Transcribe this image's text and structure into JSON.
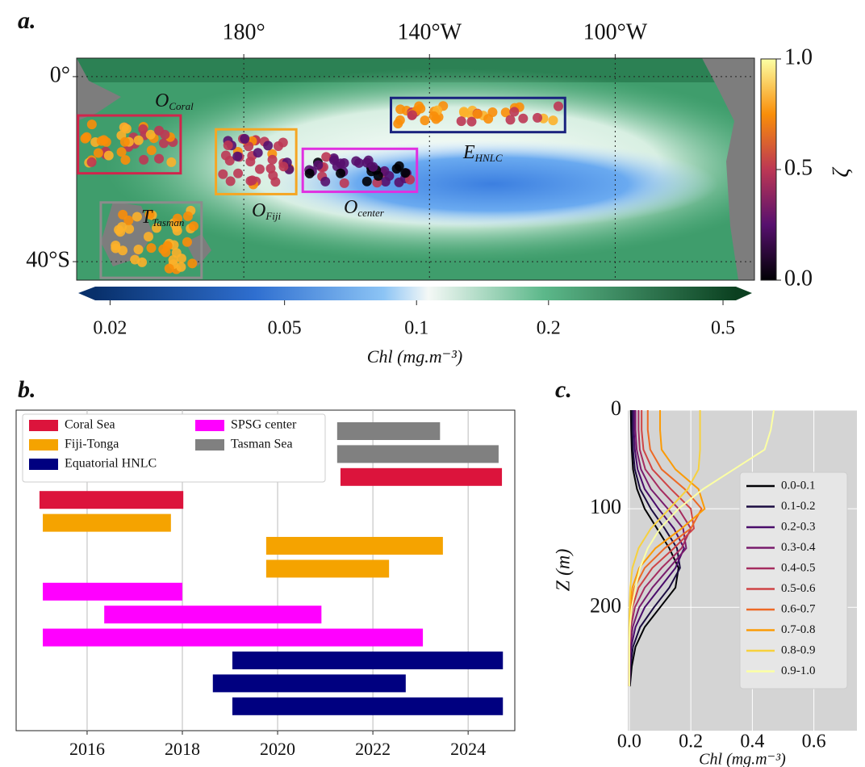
{
  "chart_data": [
    {
      "type": "map",
      "panel_label": "a.",
      "xlim": [
        144,
        290
      ],
      "ylim": [
        -44,
        4
      ],
      "xticks": [
        {
          "value": 180,
          "label": "180°"
        },
        {
          "value": 220,
          "label": "140°W"
        },
        {
          "value": 260,
          "label": "100°W"
        }
      ],
      "yticks": [
        {
          "value": 0,
          "label": "0°"
        },
        {
          "value": -40,
          "label": "40°S"
        }
      ],
      "regions": [
        {
          "text": "O",
          "sub": "Coral",
          "color": "#d1254c",
          "lon": [
            144.3,
            166.4
          ],
          "lat": [
            -8.4,
            -20.9
          ]
        },
        {
          "text": "O",
          "sub": "Fiji",
          "color": "#f5a623",
          "lon": [
            174,
            191.3
          ],
          "lat": [
            -11.4,
            -25.4
          ]
        },
        {
          "text": "O",
          "sub": "center",
          "color": "#e030e0",
          "lon": [
            192.7,
            217.3
          ],
          "lat": [
            -15.6,
            -24.9
          ]
        },
        {
          "text": "E",
          "sub": "HNLC",
          "color": "#1a237e",
          "lon": [
            211.7,
            249.2
          ],
          "lat": [
            -4.6,
            -12
          ]
        },
        {
          "text": "T",
          "sub": "Tasman",
          "color": "#8c8c8c",
          "lon": [
            149.2,
            170.9
          ],
          "lat": [
            -27.2,
            -43.5
          ]
        }
      ],
      "colorbar": {
        "label": "Chl (mg.m⁻³)",
        "log": true,
        "xlim": [
          0.0185,
          0.535
        ],
        "xticks": [
          0.02,
          0.05,
          0.1,
          0.2,
          0.5
        ]
      },
      "colorbar2": {
        "label": "ζ",
        "ylim": [
          0,
          1
        ],
        "yticks": [
          {
            "value": 0,
            "label": "0.0"
          },
          {
            "value": 0.5,
            "label": "0.5"
          },
          {
            "value": 1,
            "label": "1.0"
          }
        ]
      }
    },
    {
      "type": "timeline",
      "panel_label": "b.",
      "xlim": [
        2014.51,
        2024.98
      ],
      "xticks": [
        2016,
        2018,
        2020,
        2022,
        2024
      ],
      "grid": true,
      "series": [
        {
          "name": "Coral Sea",
          "color": "#dc143c",
          "start": [
            2021.32,
            2015.0
          ],
          "end": [
            2024.71,
            2018.02
          ]
        },
        {
          "name": "Fiji-Tonga",
          "color": "#f5a300",
          "start": [
            2015.07,
            2019.76,
            2019.76
          ],
          "end": [
            2017.76,
            2023.47,
            2022.34
          ]
        },
        {
          "name": "Equatorial HNLC",
          "color": "#000080",
          "start": [
            2019.05,
            2018.64,
            2019.05
          ],
          "end": [
            2024.73,
            2022.69,
            2024.73
          ]
        },
        {
          "name": "SPSG center",
          "color": "#ff00ff",
          "start": [
            2015.07,
            2016.36,
            2015.07
          ],
          "end": [
            2018.0,
            2020.92,
            2023.05
          ]
        },
        {
          "name": "Tasman Sea",
          "color": "#808080",
          "start": [
            2021.25,
            2021.25
          ],
          "end": [
            2023.41,
            2024.64
          ]
        }
      ]
    },
    {
      "type": "line",
      "panel_label": "c.",
      "x_label": "Chl (mg.m⁻³)",
      "y_label": "Z (m)",
      "xlim": [
        -0.005,
        0.74
      ],
      "ylim": [
        0,
        325
      ],
      "y_inverted": true,
      "xticks": [
        {
          "value": 0,
          "label": "0.0"
        },
        {
          "value": 0.2,
          "label": "0.2"
        },
        {
          "value": 0.4,
          "label": "0.4"
        },
        {
          "value": 0.6,
          "label": "0.6"
        }
      ],
      "yticks": [
        0,
        100,
        200
      ],
      "grid": true,
      "depth": [
        0,
        20,
        40,
        60,
        80,
        100,
        120,
        140,
        160,
        180,
        200,
        220,
        240,
        260,
        280
      ],
      "series": [
        {
          "name": "0.0-0.1",
          "color": "#000004",
          "values": [
            0.005,
            0.006,
            0.008,
            0.012,
            0.025,
            0.05,
            0.09,
            0.13,
            0.16,
            0.15,
            0.1,
            0.05,
            0.02,
            0.008,
            0.002
          ]
        },
        {
          "name": "0.1-0.2",
          "color": "#1b0c41",
          "values": [
            0.01,
            0.01,
            0.012,
            0.018,
            0.035,
            0.07,
            0.115,
            0.155,
            0.165,
            0.13,
            0.08,
            0.035,
            0.012,
            0.004,
            0.001
          ]
        },
        {
          "name": "0.2-0.3",
          "color": "#4a0c6b",
          "values": [
            0.015,
            0.015,
            0.018,
            0.027,
            0.05,
            0.095,
            0.145,
            0.178,
            0.15,
            0.1,
            0.05,
            0.02,
            0.006,
            0.002,
            0
          ]
        },
        {
          "name": "0.3-0.4",
          "color": "#781c6d",
          "values": [
            0.02,
            0.02,
            0.024,
            0.038,
            0.07,
            0.125,
            0.175,
            0.185,
            0.13,
            0.075,
            0.032,
            0.011,
            0.003,
            0.001,
            0
          ]
        },
        {
          "name": "0.4-0.5",
          "color": "#a52c60",
          "values": [
            0.03,
            0.03,
            0.034,
            0.052,
            0.1,
            0.16,
            0.2,
            0.17,
            0.105,
            0.05,
            0.018,
            0.005,
            0.001,
            0,
            0
          ]
        },
        {
          "name": "0.5-0.6",
          "color": "#cf4446",
          "values": [
            0.04,
            0.04,
            0.046,
            0.075,
            0.135,
            0.2,
            0.21,
            0.145,
            0.075,
            0.03,
            0.01,
            0.002,
            0,
            0,
            0
          ]
        },
        {
          "name": "0.6-0.7",
          "color": "#ed6925",
          "values": [
            0.06,
            0.06,
            0.068,
            0.105,
            0.18,
            0.235,
            0.2,
            0.115,
            0.05,
            0.017,
            0.005,
            0.001,
            0,
            0,
            0
          ]
        },
        {
          "name": "0.7-0.8",
          "color": "#fb9b06",
          "values": [
            0.1,
            0.1,
            0.105,
            0.15,
            0.225,
            0.245,
            0.17,
            0.085,
            0.032,
            0.01,
            0.002,
            0,
            0,
            0,
            0
          ]
        },
        {
          "name": "0.8-0.9",
          "color": "#f7d13d",
          "values": [
            0.23,
            0.23,
            0.23,
            0.225,
            0.19,
            0.13,
            0.07,
            0.03,
            0.01,
            0.003,
            0.001,
            0,
            0,
            0,
            0
          ]
        },
        {
          "name": "0.9-1.0",
          "color": "#fcffa4",
          "values": [
            0.47,
            0.46,
            0.44,
            0.34,
            0.24,
            0.16,
            0.1,
            0.06,
            0.035,
            0.02,
            0.008,
            0.002,
            0,
            0,
            0
          ]
        }
      ]
    }
  ]
}
